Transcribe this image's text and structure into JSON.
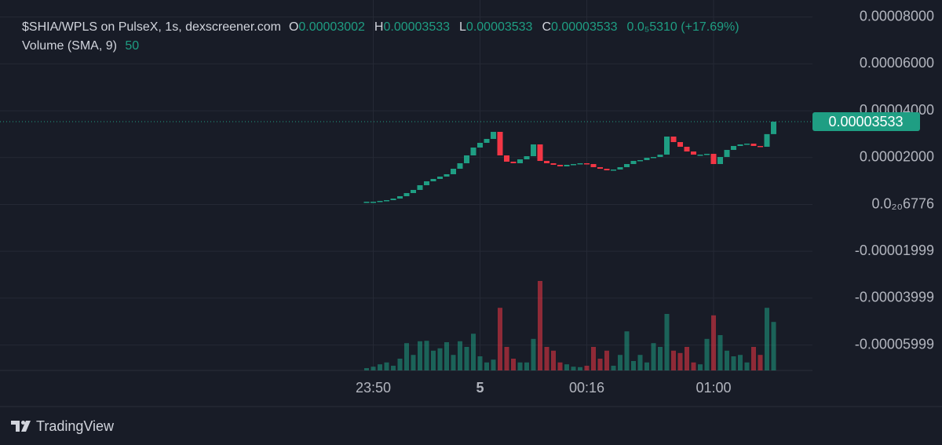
{
  "chart_data": {
    "type": "candlestick",
    "title": "$SHIA/WPLS on PulseX, 1s, dexscreener.com",
    "ohlc": [
      {
        "label": "O",
        "value": "0.00003002"
      },
      {
        "label": "H",
        "value": "0.00003533"
      },
      {
        "label": "L",
        "value": "0.00003533"
      },
      {
        "label": "C",
        "value": "0.00003533"
      }
    ],
    "change": "0.0₅5310 (+17.69%)",
    "volume_label": "Volume (SMA, 9)",
    "volume_sma": 50,
    "up_color": "#1f9e83",
    "down_color": "#f23645",
    "grid": true,
    "ylim": [
      -7.085e-05,
      8.727e-05
    ],
    "yticks": [
      {
        "value": 8e-05,
        "label": "0.00008000"
      },
      {
        "value": 6e-05,
        "label": "0.00006000"
      },
      {
        "value": 4e-05,
        "label": "0.00004000"
      },
      {
        "value": 2e-05,
        "label": "0.00002000"
      },
      {
        "value": 6.776e-21,
        "label": "0.0₂₀6776"
      },
      {
        "value": -1.999e-05,
        "label": "-0.00001999"
      },
      {
        "value": -3.999e-05,
        "label": "-0.00003999"
      },
      {
        "value": -5.999e-05,
        "label": "-0.00005999"
      }
    ],
    "categories": [
      null,
      "23:50",
      null,
      null,
      null,
      null,
      null,
      null,
      null,
      null,
      null,
      null,
      null,
      null,
      null,
      null,
      null,
      "5",
      null,
      null,
      null,
      null,
      null,
      null,
      null,
      null,
      null,
      null,
      null,
      null,
      null,
      null,
      null,
      "00:16",
      null,
      null,
      null,
      null,
      null,
      null,
      null,
      null,
      null,
      null,
      null,
      null,
      null,
      null,
      null,
      null,
      null,
      null,
      "01:00",
      null,
      null,
      null,
      null,
      null,
      null,
      null,
      null,
      null
    ],
    "open": [
      8.4e-07,
      1.17e-06,
      1.17e-06,
      1.51e-06,
      1.84e-06,
      2.51e-06,
      3.52e-06,
      4.86e-06,
      6.2e-06,
      8.21e-06,
      9.88e-06,
      1.089e-05,
      1.189e-05,
      1.29e-05,
      1.524e-05,
      1.759e-05,
      2.094e-05,
      2.429e-05,
      2.63e-05,
      2.797e-05,
      3.099e-05,
      2.094e-05,
      1.826e-05,
      1.759e-05,
      1.926e-05,
      2.06e-05,
      2.563e-05,
      1.859e-05,
      1.759e-05,
      1.692e-05,
      1.625e-05,
      1.692e-05,
      1.725e-05,
      1.759e-05,
      1.725e-05,
      1.591e-05,
      1.524e-05,
      1.457e-05,
      1.491e-05,
      1.591e-05,
      1.725e-05,
      1.859e-05,
      1.893e-05,
      1.993e-05,
      2.027e-05,
      2.127e-05,
      2.898e-05,
      2.663e-05,
      2.462e-05,
      2.261e-05,
      2.127e-05,
      2.127e-05,
      2.161e-05,
      1.725e-05,
      2.027e-05,
      2.328e-05,
      2.496e-05,
      2.563e-05,
      2.596e-05,
      2.496e-05,
      2.462e-05,
      3.002e-05
    ],
    "close": [
      1.17e-06,
      1.17e-06,
      1.51e-06,
      1.84e-06,
      2.51e-06,
      3.52e-06,
      4.86e-06,
      6.2e-06,
      8.21e-06,
      9.88e-06,
      1.089e-05,
      1.189e-05,
      1.29e-05,
      1.524e-05,
      1.759e-05,
      2.094e-05,
      2.429e-05,
      2.63e-05,
      2.797e-05,
      3.099e-05,
      2.094e-05,
      1.826e-05,
      1.759e-05,
      1.926e-05,
      2.06e-05,
      2.563e-05,
      1.859e-05,
      1.759e-05,
      1.692e-05,
      1.625e-05,
      1.692e-05,
      1.725e-05,
      1.759e-05,
      1.725e-05,
      1.591e-05,
      1.524e-05,
      1.457e-05,
      1.491e-05,
      1.591e-05,
      1.725e-05,
      1.859e-05,
      1.893e-05,
      1.993e-05,
      2.027e-05,
      2.127e-05,
      2.898e-05,
      2.663e-05,
      2.462e-05,
      2.261e-05,
      2.127e-05,
      2.127e-05,
      2.161e-05,
      1.725e-05,
      2.027e-05,
      2.328e-05,
      2.496e-05,
      2.563e-05,
      2.596e-05,
      2.496e-05,
      2.462e-05,
      3.002e-05,
      3.533e-05
    ],
    "volume": [
      5,
      8,
      13,
      17,
      10,
      25,
      58,
      33,
      62,
      63,
      42,
      47,
      60,
      33,
      62,
      50,
      78,
      30,
      17,
      23,
      133,
      50,
      25,
      17,
      17,
      67,
      190,
      50,
      42,
      17,
      13,
      8,
      7,
      10,
      50,
      25,
      42,
      10,
      33,
      83,
      20,
      33,
      17,
      58,
      50,
      120,
      42,
      37,
      50,
      17,
      13,
      67,
      117,
      75,
      42,
      30,
      33,
      17,
      50,
      33,
      133,
      103
    ]
  },
  "footer": {
    "brand": "TradingView"
  }
}
